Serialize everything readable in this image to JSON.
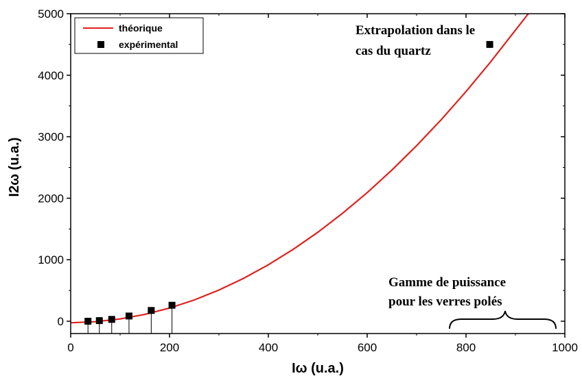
{
  "chart_data": {
    "type": "scatter",
    "title": "",
    "xlabel": "Iω (u.a.)",
    "ylabel": "I2ω (u.a.)",
    "xlim": [
      0,
      1000
    ],
    "ylim": [
      -200,
      5000
    ],
    "x_ticks": [
      0,
      200,
      400,
      600,
      800,
      1000
    ],
    "y_ticks": [
      0,
      1000,
      2000,
      3000,
      4000,
      5000
    ],
    "x_tick_labels": [
      "0",
      "200",
      "400",
      "600",
      "800",
      "1000"
    ],
    "y_tick_labels": [
      "0",
      "1000",
      "2000",
      "3000",
      "4000",
      "5000"
    ],
    "grid": false,
    "legend": {
      "placement": "top-left",
      "entries": [
        "théorique",
        "expérimental"
      ]
    },
    "series": [
      {
        "name": "théorique",
        "kind": "line",
        "color": "#e0201c",
        "x": [
          0,
          50,
          100,
          150,
          200,
          250,
          300,
          350,
          400,
          450,
          500,
          550,
          600,
          650,
          700,
          750,
          800,
          850,
          900
        ],
        "y": [
          -25,
          -7,
          37,
          111,
          214,
          346,
          507,
          698,
          918,
          1167,
          1446,
          1754,
          2091,
          2458,
          2854,
          3279,
          3734,
          4218,
          4732
        ]
      },
      {
        "name": "expérimental",
        "kind": "scatter",
        "color": "#000000",
        "x": [
          35,
          58,
          83,
          118,
          163,
          205,
          848
        ],
        "y": [
          0,
          10,
          30,
          85,
          175,
          260,
          4500
        ]
      }
    ],
    "annotations": [
      {
        "text": [
          "Extrapolation dans le",
          "cas du quartz"
        ],
        "x": 848,
        "y": 4500
      },
      {
        "text": [
          "Gamme de puissance",
          "pour les verres polés"
        ],
        "x_range": [
          770,
          985
        ]
      }
    ]
  }
}
